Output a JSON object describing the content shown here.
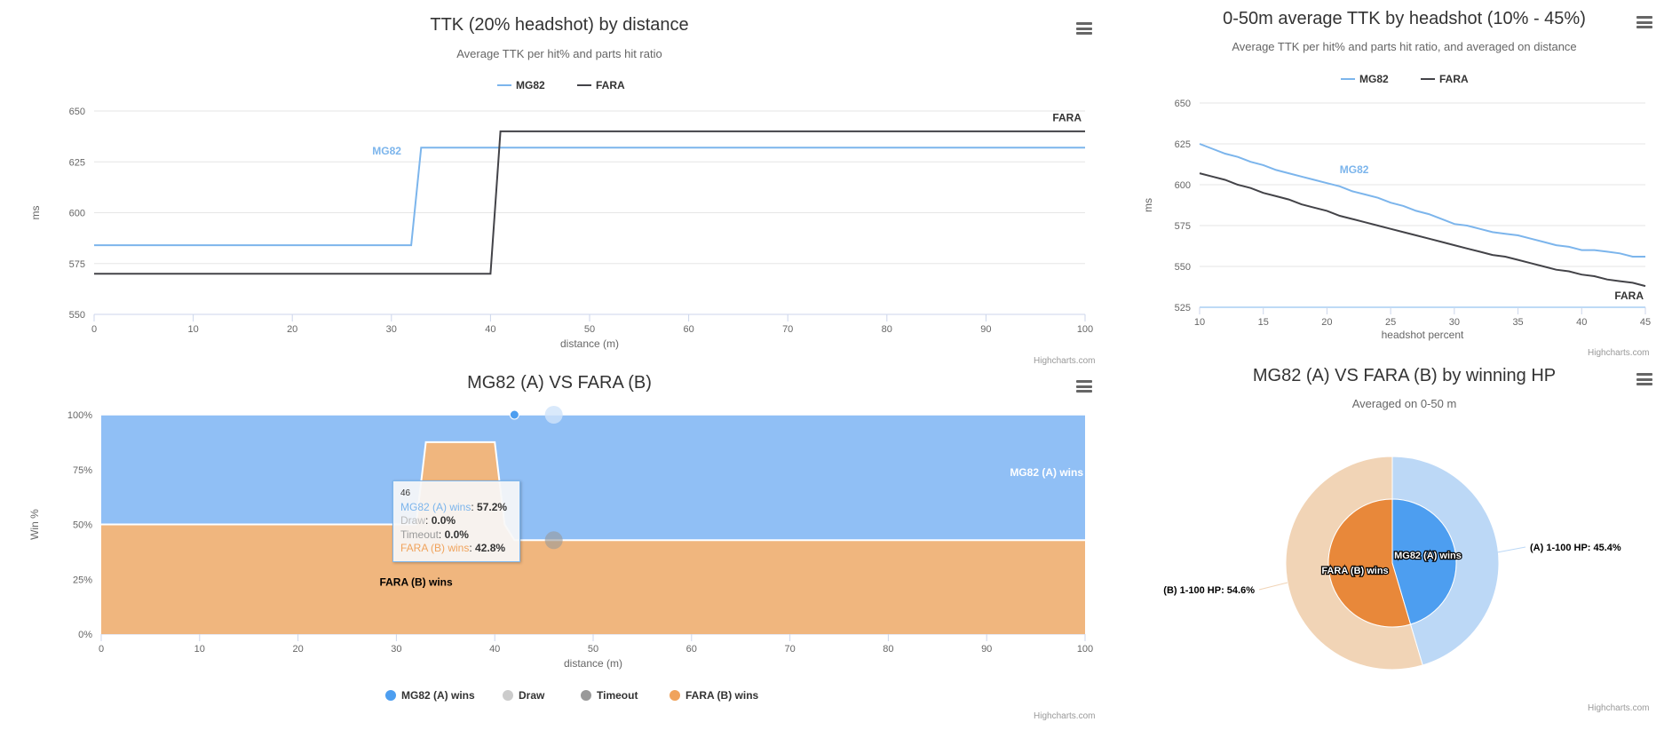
{
  "credits": "Highcharts.com",
  "colors": {
    "mg82": "#7cb5ec",
    "fara": "#434348",
    "a_fill": "#90bff5",
    "b_fill": "#f0b67e",
    "a_pie_inner": "#4d9ef0",
    "b_pie_inner": "#e8883a",
    "a_pie_outer": "#bcd8f6",
    "b_pie_outer": "#f1d4b6",
    "draw": "#cccccc",
    "timeout": "#999999",
    "a_legend": "#4d9ef0",
    "b_legend": "#f0a35c"
  },
  "chart_data": [
    {
      "type": "line",
      "title": "TTK (20% headshot) by distance",
      "subtitle": "Average TTK per hit% and parts hit ratio",
      "xlabel": "distance (m)",
      "ylabel": "ms",
      "xlim": [
        0,
        100
      ],
      "ylim": [
        550,
        650
      ],
      "xticks": [
        "0",
        "10",
        "20",
        "30",
        "40",
        "50",
        "60",
        "70",
        "80",
        "90",
        "100"
      ],
      "yticks": [
        "550",
        "575",
        "600",
        "625",
        "650"
      ],
      "grid": true,
      "legend": "top-center",
      "series": [
        {
          "name": "MG82",
          "label": "MG82",
          "points": [
            [
              0,
              584
            ],
            [
              32,
              584
            ],
            [
              33,
              632
            ],
            [
              100,
              632
            ]
          ]
        },
        {
          "name": "FARA",
          "label": "FARA",
          "points": [
            [
              0,
              570
            ],
            [
              40,
              570
            ],
            [
              41,
              640
            ],
            [
              100,
              640
            ]
          ]
        }
      ]
    },
    {
      "type": "line",
      "title": "0-50m average TTK by headshot (10% - 45%)",
      "subtitle": "Average TTK per hit% and parts hit ratio, and averaged on distance",
      "xlabel": "headshot percent",
      "ylabel": "ms",
      "xlim": [
        10,
        45
      ],
      "ylim": [
        525,
        650
      ],
      "xticks": [
        "10",
        "15",
        "20",
        "25",
        "30",
        "35",
        "40",
        "45"
      ],
      "yticks": [
        "525",
        "550",
        "575",
        "600",
        "625",
        "650"
      ],
      "grid": true,
      "legend": "top-center",
      "x": [
        10,
        11,
        12,
        13,
        14,
        15,
        16,
        17,
        18,
        19,
        20,
        21,
        22,
        23,
        24,
        25,
        26,
        27,
        28,
        29,
        30,
        31,
        32,
        33,
        34,
        35,
        36,
        37,
        38,
        39,
        40,
        41,
        42,
        43,
        44,
        45
      ],
      "series": [
        {
          "name": "MG82",
          "label": "MG82",
          "values": [
            625,
            622,
            619,
            617,
            614,
            612,
            609,
            607,
            605,
            603,
            601,
            599,
            596,
            594,
            592,
            589,
            587,
            584,
            582,
            579,
            576,
            575,
            573,
            571,
            570,
            569,
            567,
            565,
            563,
            562,
            560,
            560,
            559,
            558,
            556,
            556
          ]
        },
        {
          "name": "FARA",
          "label": "FARA",
          "values": [
            607,
            605,
            603,
            600,
            598,
            595,
            593,
            591,
            588,
            586,
            584,
            581,
            579,
            577,
            575,
            573,
            571,
            569,
            567,
            565,
            563,
            561,
            559,
            557,
            556,
            554,
            552,
            550,
            548,
            547,
            545,
            544,
            542,
            541,
            540,
            538
          ]
        }
      ]
    },
    {
      "type": "area",
      "stacking": "percent",
      "title": "MG82 (A) VS FARA (B)",
      "xlabel": "distance (m)",
      "ylabel": "Win %",
      "xlim": [
        0,
        100
      ],
      "ylim": [
        0,
        100
      ],
      "xticks": [
        "0",
        "10",
        "20",
        "30",
        "40",
        "50",
        "60",
        "70",
        "80",
        "90",
        "100"
      ],
      "yticks": [
        "0%",
        "25%",
        "50%",
        "75%",
        "100%"
      ],
      "grid": true,
      "legend": "bottom-center",
      "legend_items": [
        "MG82 (A) wins",
        "Draw",
        "Timeout",
        "FARA (B) wins"
      ],
      "series_a": {
        "name": "MG82 (A) wins",
        "label": "MG82 (A) wins",
        "points": [
          [
            0,
            50
          ],
          [
            32,
            50
          ],
          [
            33,
            12.5
          ],
          [
            40,
            12.5
          ],
          [
            41,
            50
          ],
          [
            42,
            57.2
          ],
          [
            100,
            57.2
          ]
        ]
      },
      "series_b": {
        "name": "FARA (B) wins",
        "label": "FARA (B) wins",
        "points": [
          [
            0,
            50
          ],
          [
            32,
            50
          ],
          [
            33,
            87.5
          ],
          [
            40,
            87.5
          ],
          [
            41,
            50
          ],
          [
            42,
            42.8
          ],
          [
            100,
            42.8
          ]
        ]
      },
      "tooltip": {
        "header": "46",
        "rows": [
          {
            "name": "MG82 (A) wins",
            "value": "57.2%"
          },
          {
            "name": "Draw",
            "value": "0.0%"
          },
          {
            "name": "Timeout",
            "value": "0.0%"
          },
          {
            "name": "FARA (B) wins",
            "value": "42.8%"
          }
        ]
      },
      "hover_x": 46
    },
    {
      "type": "pie",
      "title": "MG82 (A) VS FARA (B) by winning HP",
      "subtitle": "Averaged on 0-50 m",
      "inner": [
        {
          "name": "MG82 (A) wins",
          "value": 45.4
        },
        {
          "name": "FARA (B) wins",
          "value": 54.6
        }
      ],
      "outer": [
        {
          "name": "(A) 1-100 HP",
          "value": 45.4,
          "label": "(A) 1-100 HP: 45.4%"
        },
        {
          "name": "(B) 1-100 HP",
          "value": 54.6,
          "label": "(B) 1-100 HP: 54.6%"
        }
      ]
    }
  ]
}
